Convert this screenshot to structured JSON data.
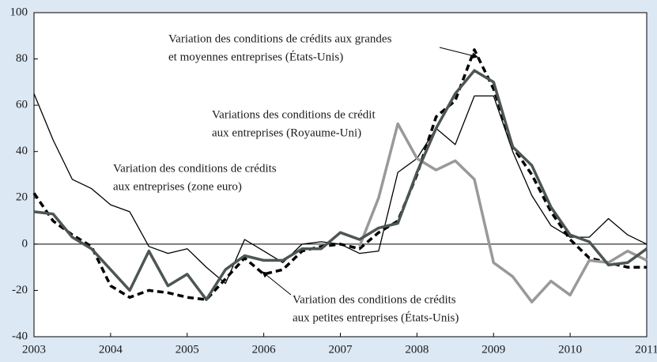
{
  "chart_data": {
    "type": "line",
    "x": [
      2003,
      2003.25,
      2003.5,
      2003.75,
      2004,
      2004.25,
      2004.5,
      2004.75,
      2005,
      2005.25,
      2005.5,
      2005.75,
      2006,
      2006.25,
      2006.5,
      2006.75,
      2007,
      2007.25,
      2007.5,
      2007.75,
      2008,
      2008.25,
      2008.5,
      2008.75,
      2009,
      2009.25,
      2009.5,
      2009.75,
      2010,
      2010.25,
      2010.5,
      2010.75,
      2011
    ],
    "series": [
      {
        "color": "#000000",
        "width": 1.3,
        "dash": false,
        "values": [
          65,
          45,
          28,
          24,
          17,
          14,
          -1,
          -4,
          -2,
          -10,
          -17,
          2,
          -3,
          -8,
          0,
          1,
          0,
          -4,
          -3,
          31,
          37,
          50,
          43,
          64,
          64,
          40,
          21,
          8,
          3,
          3,
          11,
          4,
          0
        ]
      },
      {
        "color": "#000000",
        "width": 3.5,
        "dash": true,
        "values": [
          22,
          10,
          4,
          -1,
          -18,
          -23,
          -20,
          -21,
          -23,
          -24,
          -15,
          -6,
          -13,
          -11,
          -3,
          -1,
          0,
          -2,
          5,
          10,
          30,
          55,
          62,
          84,
          67,
          42,
          30,
          14,
          2,
          -6,
          -8,
          -10,
          -10
        ]
      },
      {
        "color": "#999999",
        "width": 3.5,
        "dash": false,
        "values": [
          null,
          null,
          null,
          null,
          null,
          null,
          null,
          null,
          null,
          null,
          null,
          null,
          null,
          null,
          null,
          null,
          null,
          -1,
          20,
          52,
          37,
          32,
          36,
          28,
          -8,
          -14,
          -25,
          -16,
          -22,
          -7,
          -8,
          -3,
          -7
        ]
      },
      {
        "color": "#4d5751",
        "width": 3.5,
        "dash": false,
        "values": [
          14,
          13,
          3,
          -2,
          -11,
          -20,
          -3,
          -18,
          -13,
          -24,
          -11,
          -5,
          -7,
          -7,
          -2,
          -2,
          5,
          2,
          7,
          9,
          31,
          50,
          65,
          75,
          70,
          42,
          34,
          16,
          4,
          1,
          -9,
          -8,
          -2
        ]
      }
    ],
    "annotations": [
      {
        "lines": [
          "Variation des conditions de crédits aux grandes",
          "et moyennes entreprises (États-Unis)"
        ]
      },
      {
        "lines": [
          "Variations des conditions de crédit",
          "aux entreprises (Royaume-Uni)"
        ]
      },
      {
        "lines": [
          "Variation des conditions de crédits",
          "aux entreprises (zone euro)"
        ]
      },
      {
        "lines": [
          "Variation des conditions de crédits",
          "aux petites entreprises (États-Unis)"
        ]
      }
    ],
    "xlim": [
      2003,
      2011
    ],
    "xticks": [
      2003,
      2004,
      2005,
      2006,
      2007,
      2008,
      2009,
      2010,
      2011
    ],
    "ylim": [
      -40,
      100
    ],
    "yticks": [
      -40,
      -20,
      0,
      20,
      40,
      60,
      80,
      100
    ]
  }
}
